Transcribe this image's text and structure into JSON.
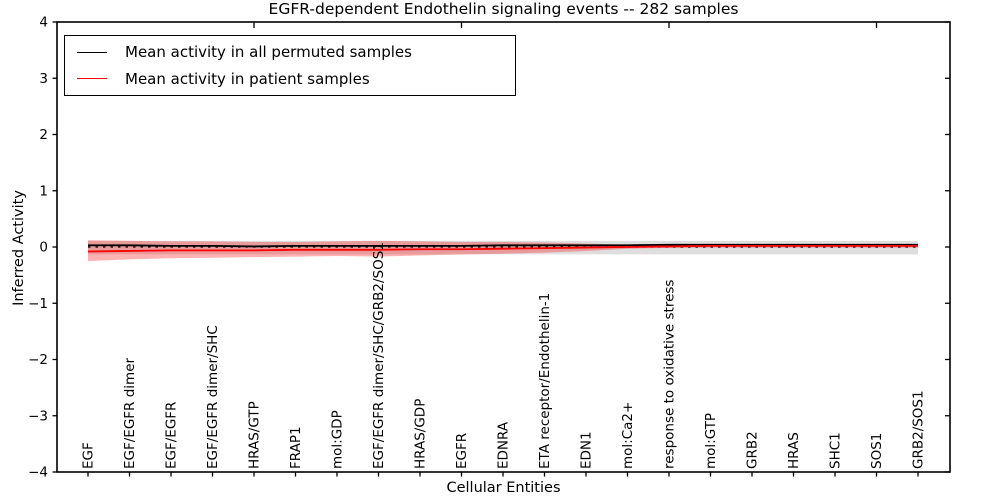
{
  "chart_data": {
    "type": "line",
    "title": "EGFR-dependent Endothelin signaling events -- 282 samples",
    "xlabel": "Cellular Entities",
    "ylabel": "Inferred Activity",
    "ylim": [
      -4,
      4
    ],
    "yticks": [
      -4,
      -3,
      -2,
      -1,
      0,
      1,
      2,
      3,
      4
    ],
    "grid": false,
    "categories": [
      "EGF",
      "EGF/EGFR dimer",
      "EGF/EGFR",
      "EGF/EGFR dimer/SHC",
      "HRAS/GTP",
      "FRAP1",
      "mol:GDP",
      "EGF/EGFR dimer/SHC/GRB2/SOS1",
      "HRAS/GDP",
      "EGFR",
      "EDNRA",
      "ETA receptor/Endothelin-1",
      "EDN1",
      "mol:Ca2+",
      "response to oxidative stress",
      "mol:GTP",
      "GRB2",
      "HRAS",
      "SHC1",
      "SOS1",
      "GRB2/SOS1"
    ],
    "series": [
      {
        "name": "Mean activity in all permuted samples",
        "color": "#000000",
        "style": "solid",
        "values": [
          0.03,
          0.03,
          0.02,
          0.02,
          0.01,
          0.02,
          0.02,
          0.02,
          0.02,
          0.02,
          0.03,
          0.03,
          0.03,
          0.03,
          0.04,
          0.04,
          0.04,
          0.04,
          0.04,
          0.04,
          0.04
        ]
      },
      {
        "name": "Mean activity in patient samples",
        "color": "#ff0000",
        "style": "solid",
        "values": [
          -0.08,
          -0.07,
          -0.06,
          -0.06,
          -0.06,
          -0.05,
          -0.05,
          -0.05,
          -0.04,
          -0.04,
          -0.03,
          -0.02,
          -0.01,
          0.0,
          0.01,
          0.02,
          0.02,
          0.02,
          0.02,
          0.02,
          0.02
        ]
      }
    ],
    "bands": [
      {
        "name": "permuted-samples-band",
        "fill": "rgba(0,0,0,0.13)",
        "upper": [
          0.11,
          0.11,
          0.11,
          0.11,
          0.11,
          0.11,
          0.11,
          0.11,
          0.11,
          0.11,
          0.11,
          0.11,
          0.11,
          0.11,
          0.11,
          0.11,
          0.11,
          0.11,
          0.11,
          0.11,
          0.11
        ],
        "lower": [
          -0.13,
          -0.13,
          -0.13,
          -0.13,
          -0.13,
          -0.13,
          -0.13,
          -0.13,
          -0.13,
          -0.13,
          -0.13,
          -0.13,
          -0.13,
          -0.13,
          -0.13,
          -0.13,
          -0.13,
          -0.13,
          -0.13,
          -0.13,
          -0.13
        ]
      },
      {
        "name": "patient-samples-band",
        "fill": "rgba(255,0,0,0.30)",
        "upper": [
          0.12,
          0.11,
          0.1,
          0.1,
          0.09,
          0.09,
          0.1,
          0.11,
          0.1,
          0.09,
          0.09,
          0.08,
          0.06,
          0.04,
          0.04,
          0.045,
          0.045,
          0.045,
          0.045,
          0.045,
          0.045
        ],
        "lower": [
          -0.25,
          -0.22,
          -0.2,
          -0.19,
          -0.18,
          -0.17,
          -0.16,
          -0.17,
          -0.15,
          -0.13,
          -0.12,
          -0.1,
          -0.07,
          -0.03,
          -0.015,
          -0.01,
          -0.01,
          -0.01,
          -0.01,
          -0.01,
          -0.01
        ]
      }
    ],
    "zero_line": {
      "y": 0,
      "color": "#000000",
      "style": "dotted"
    },
    "top_tick_indices": [
      4,
      9,
      14,
      19
    ],
    "legend": {
      "position": "upper left",
      "items": [
        {
          "label": "Mean activity in all permuted samples",
          "color": "#000000"
        },
        {
          "label": "Mean activity in patient samples",
          "color": "#ff0000"
        }
      ]
    }
  }
}
